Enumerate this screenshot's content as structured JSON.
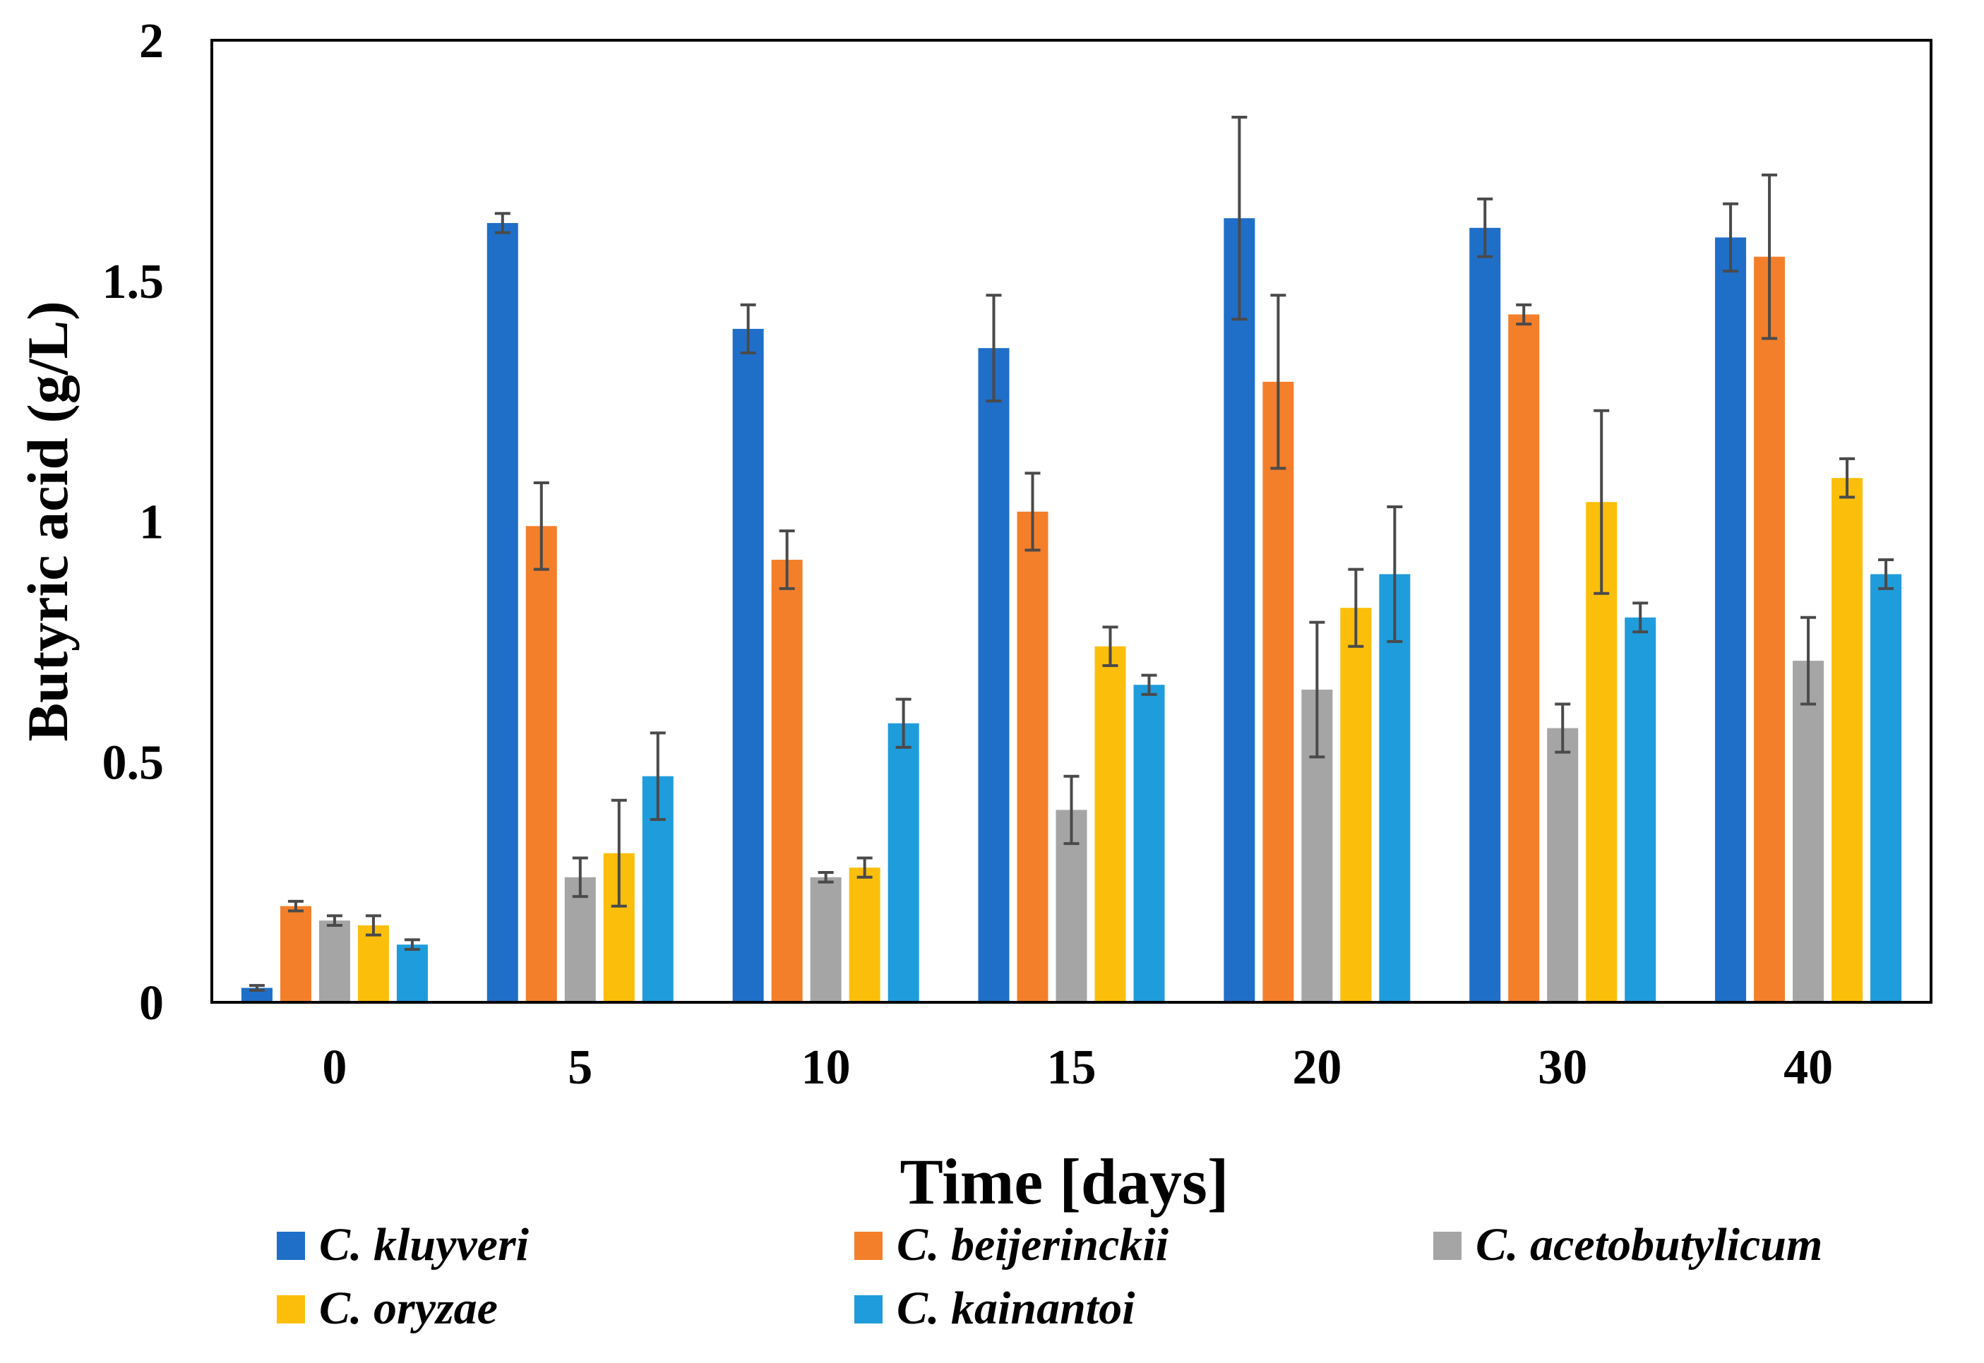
{
  "chart_data": {
    "type": "bar",
    "title": "",
    "xlabel": "Time [days]",
    "ylabel": "Butyric acid (g/L)",
    "ylim": [
      0,
      2
    ],
    "yticks": [
      "0",
      "0.5",
      "1",
      "1.5",
      "2"
    ],
    "ytick_values": [
      0,
      0.5,
      1,
      1.5,
      2
    ],
    "categories": [
      "0",
      "5",
      "10",
      "15",
      "20",
      "30",
      "40"
    ],
    "grid": false,
    "legend_position": "bottom",
    "series": [
      {
        "name": "C. kluyveri",
        "color": "#1f6fc8",
        "values": [
          0.03,
          1.62,
          1.4,
          1.36,
          1.63,
          1.61,
          1.59
        ],
        "errors": [
          0.005,
          0.02,
          0.05,
          0.11,
          0.21,
          0.06,
          0.07
        ]
      },
      {
        "name": "C. beijerinckii",
        "color": "#f47f2a",
        "values": [
          0.2,
          0.99,
          0.92,
          1.02,
          1.29,
          1.43,
          1.55
        ],
        "errors": [
          0.01,
          0.09,
          0.06,
          0.08,
          0.18,
          0.02,
          0.17
        ]
      },
      {
        "name": "C. acetobutylicum",
        "color": "#a5a5a5",
        "values": [
          0.17,
          0.26,
          0.26,
          0.4,
          0.65,
          0.57,
          0.71
        ],
        "errors": [
          0.01,
          0.04,
          0.01,
          0.07,
          0.14,
          0.05,
          0.09
        ]
      },
      {
        "name": "C. oryzae",
        "color": "#fbbf0b",
        "values": [
          0.16,
          0.31,
          0.28,
          0.74,
          0.82,
          1.04,
          1.09
        ],
        "errors": [
          0.02,
          0.11,
          0.02,
          0.04,
          0.08,
          0.19,
          0.04
        ]
      },
      {
        "name": "C. kainantoi",
        "color": "#1f9cdb",
        "values": [
          0.12,
          0.47,
          0.58,
          0.66,
          0.89,
          0.8,
          0.89
        ],
        "errors": [
          0.01,
          0.09,
          0.05,
          0.02,
          0.14,
          0.03,
          0.03
        ]
      }
    ]
  }
}
